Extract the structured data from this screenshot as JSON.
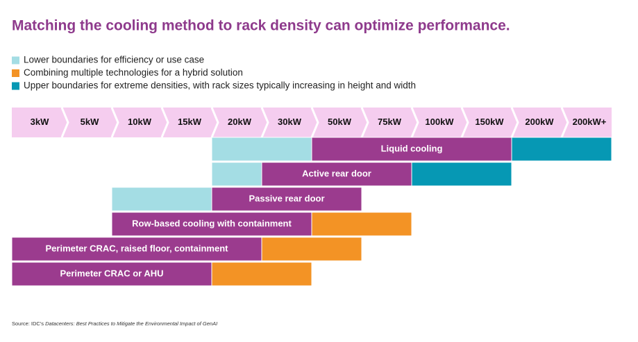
{
  "header": {
    "title": "Matching the cooling method to rack density can optimize performance."
  },
  "segment_colors": {
    "lower": "#a4dde4",
    "hybrid": "#f39325",
    "upper": "#0698b4",
    "core": "#9b3b8e"
  },
  "legend": [
    {
      "kind": "lower",
      "text": "Lower boundaries for efficiency or use case"
    },
    {
      "kind": "hybrid",
      "text": "Combining multiple technologies for a hybrid solution"
    },
    {
      "kind": "upper",
      "text": "Upper boundaries for extreme densities, with rack sizes typically increasing in height and width"
    }
  ],
  "tiers": [
    "3kW",
    "5kW",
    "10kW",
    "15kW",
    "20kW",
    "30kW",
    "50kW",
    "75kW",
    "100kW",
    "150kW",
    "200kW",
    "200kW+"
  ],
  "rows": [
    {
      "label": "Liquid cooling",
      "segments": [
        {
          "kind": "lower",
          "start": 4,
          "end": 6
        },
        {
          "kind": "core",
          "start": 6,
          "end": 10
        },
        {
          "kind": "upper",
          "start": 10,
          "end": 12
        }
      ]
    },
    {
      "label": "Active rear door",
      "segments": [
        {
          "kind": "lower",
          "start": 4,
          "end": 5
        },
        {
          "kind": "core",
          "start": 5,
          "end": 8
        },
        {
          "kind": "upper",
          "start": 8,
          "end": 10
        }
      ]
    },
    {
      "label": "Passive rear door",
      "segments": [
        {
          "kind": "lower",
          "start": 2,
          "end": 4
        },
        {
          "kind": "core",
          "start": 4,
          "end": 7
        }
      ]
    },
    {
      "label": "Row-based cooling with containment",
      "segments": [
        {
          "kind": "core",
          "start": 2,
          "end": 6
        },
        {
          "kind": "hybrid",
          "start": 6,
          "end": 8
        }
      ]
    },
    {
      "label": "Perimeter CRAC, raised floor, containment",
      "segments": [
        {
          "kind": "core",
          "start": 0,
          "end": 5
        },
        {
          "kind": "hybrid",
          "start": 5,
          "end": 7
        }
      ]
    },
    {
      "label": "Perimeter CRAC or AHU",
      "segments": [
        {
          "kind": "core",
          "start": 0,
          "end": 4
        },
        {
          "kind": "hybrid",
          "start": 4,
          "end": 6
        }
      ]
    }
  ],
  "source": {
    "prefix": "Source: IDC's ",
    "title": "Datacenters: Best Practices to Mitigate the Environmental Impact of GenAI"
  }
}
